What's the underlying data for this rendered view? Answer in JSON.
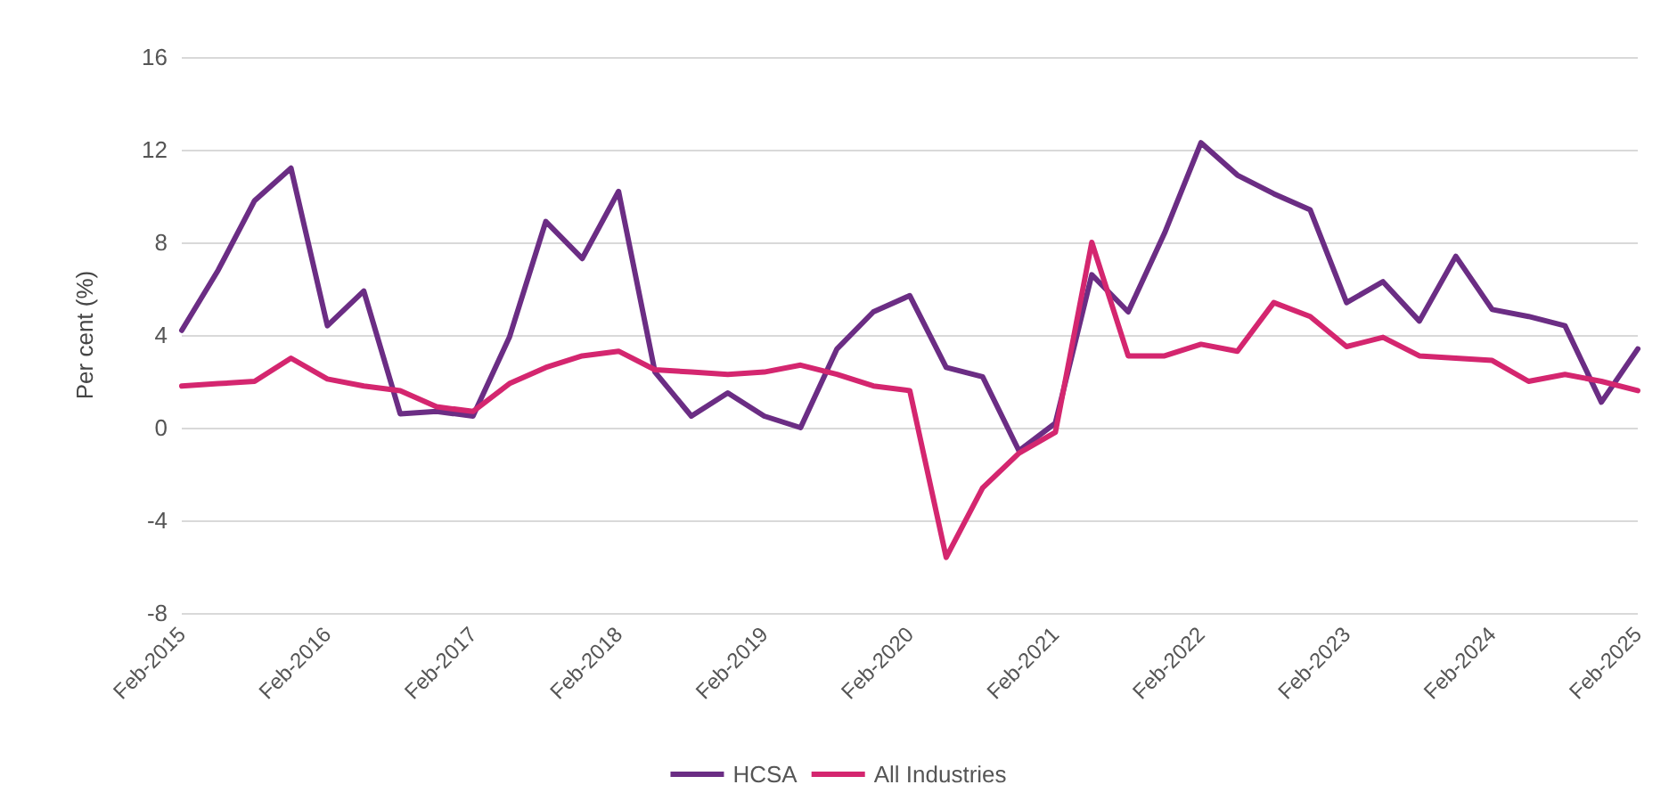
{
  "chart_data": {
    "type": "line",
    "ylabel": "Per cent (%)",
    "categories": [
      "Feb-2015",
      null,
      null,
      null,
      "Feb-2016",
      null,
      null,
      null,
      "Feb-2017",
      null,
      null,
      null,
      "Feb-2018",
      null,
      null,
      null,
      "Feb-2019",
      null,
      null,
      null,
      "Feb-2020",
      null,
      null,
      null,
      "Feb-2021",
      null,
      null,
      null,
      "Feb-2022",
      null,
      null,
      null,
      "Feb-2023",
      null,
      null,
      null,
      "Feb-2024",
      null,
      null,
      null,
      "Feb-2025"
    ],
    "series": [
      {
        "name": "HCSA",
        "color": "#6b2d84",
        "values": [
          4.2,
          6.8,
          9.8,
          11.2,
          4.4,
          5.9,
          0.6,
          0.7,
          0.5,
          3.9,
          8.9,
          7.3,
          10.2,
          2.4,
          0.5,
          1.5,
          0.5,
          0.0,
          3.4,
          5.0,
          5.7,
          2.6,
          2.2,
          -1.0,
          0.2,
          6.6,
          5.0,
          8.4,
          12.3,
          10.9,
          10.1,
          9.4,
          5.4,
          6.3,
          4.6,
          7.4,
          5.1,
          4.8,
          4.4,
          1.1,
          3.4
        ]
      },
      {
        "name": "All Industries",
        "color": "#d4266f",
        "values": [
          1.8,
          1.9,
          2.0,
          3.0,
          2.1,
          1.8,
          1.6,
          0.9,
          0.7,
          1.9,
          2.6,
          3.1,
          3.3,
          2.5,
          2.4,
          2.3,
          2.4,
          2.7,
          2.3,
          1.8,
          1.6,
          -5.6,
          -2.6,
          -1.1,
          -0.2,
          8.0,
          3.1,
          3.1,
          3.6,
          3.3,
          5.4,
          4.8,
          3.5,
          3.9,
          3.1,
          3.0,
          2.9,
          2.0,
          2.3,
          2.0,
          1.6
        ]
      }
    ],
    "ylim": [
      -8,
      16
    ],
    "yticks": [
      -8,
      -4,
      0,
      4,
      8,
      12,
      16
    ],
    "grid": "y",
    "legend": "bottom",
    "marker": "none",
    "line_style": "solid"
  }
}
